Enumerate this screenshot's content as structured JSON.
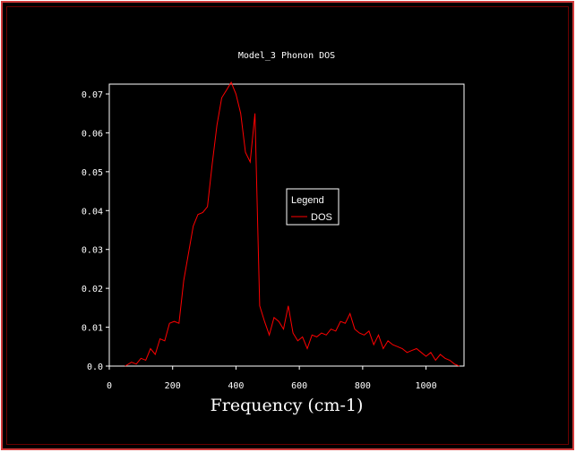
{
  "colors": {
    "background": "#000000",
    "frame": "#d23c3c",
    "axes": "#ffffff",
    "series": "#ff0000"
  },
  "chart_data": {
    "type": "line",
    "title": "Model_3 Phonon DOS",
    "xlabel": "Frequency (cm-1)",
    "ylabel": "",
    "xlim": [
      0,
      1120
    ],
    "ylim": [
      0,
      0.07
    ],
    "x_ticks": [
      0,
      200,
      400,
      600,
      800,
      1000
    ],
    "x_tick_labels": [
      "0",
      "200",
      "400",
      "600",
      "800",
      "1000"
    ],
    "y_ticks": [
      0,
      0.01,
      0.02,
      0.03,
      0.04,
      0.05,
      0.06,
      0.07
    ],
    "y_tick_labels": [
      "0.0",
      "0.01",
      "0.02",
      "0.03",
      "0.04",
      "0.05",
      "0.06",
      "0.07"
    ],
    "grid": false,
    "legend": {
      "title": "Legend",
      "placement": "center-right"
    },
    "series": [
      {
        "name": "DOS",
        "color": "#ff0000",
        "x": [
          50,
          70,
          85,
          100,
          115,
          130,
          145,
          160,
          175,
          190,
          205,
          220,
          235,
          250,
          265,
          280,
          295,
          310,
          325,
          340,
          355,
          370,
          385,
          400,
          415,
          430,
          445,
          460,
          475,
          490,
          505,
          520,
          535,
          550,
          565,
          580,
          595,
          610,
          625,
          640,
          655,
          670,
          685,
          700,
          715,
          730,
          745,
          760,
          775,
          790,
          805,
          820,
          835,
          850,
          865,
          880,
          895,
          910,
          925,
          940,
          955,
          970,
          985,
          1000,
          1015,
          1030,
          1045,
          1060,
          1075,
          1090,
          1105
        ],
        "y": [
          0.0,
          0.001,
          0.0005,
          0.002,
          0.0015,
          0.0045,
          0.003,
          0.007,
          0.0065,
          0.011,
          0.0115,
          0.011,
          0.022,
          0.029,
          0.036,
          0.039,
          0.0395,
          0.041,
          0.052,
          0.062,
          0.069,
          0.071,
          0.073,
          0.07,
          0.065,
          0.055,
          0.0525,
          0.065,
          0.0155,
          0.0115,
          0.008,
          0.0125,
          0.0115,
          0.0095,
          0.0155,
          0.0085,
          0.0065,
          0.0075,
          0.0045,
          0.008,
          0.0075,
          0.0085,
          0.008,
          0.0095,
          0.009,
          0.0115,
          0.011,
          0.0135,
          0.0095,
          0.0085,
          0.008,
          0.009,
          0.0055,
          0.008,
          0.0045,
          0.0065,
          0.0055,
          0.005,
          0.0045,
          0.0035,
          0.004,
          0.0045,
          0.0035,
          0.0025,
          0.0035,
          0.0015,
          0.003,
          0.002,
          0.0015,
          0.0005,
          0.0
        ]
      }
    ]
  }
}
